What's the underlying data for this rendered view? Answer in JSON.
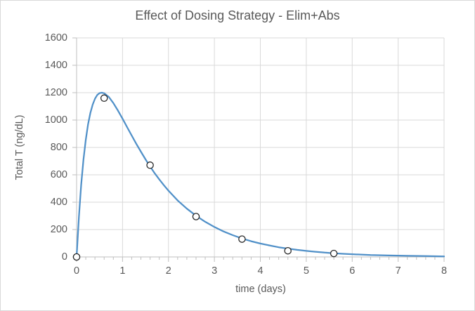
{
  "chart_data": {
    "type": "line",
    "title": "Effect of Dosing Strategy - Elim+Abs",
    "xlabel": "time (days)",
    "ylabel": "Total T (ng/dL)",
    "xlim": [
      0,
      8
    ],
    "ylim": [
      0,
      1600
    ],
    "x_ticks": [
      0,
      1,
      2,
      3,
      4,
      5,
      6,
      7,
      8
    ],
    "x_minor_tick_interval": 0.2,
    "y_ticks": [
      0,
      200,
      400,
      600,
      800,
      1000,
      1200,
      1400,
      1600
    ],
    "grid": true,
    "legend": false,
    "series": [
      {
        "name": "model-curve",
        "type": "line",
        "color": "#5090C8",
        "points": [
          [
            0,
            0
          ],
          [
            0.05,
            292
          ],
          [
            0.1,
            526
          ],
          [
            0.15,
            712
          ],
          [
            0.2,
            857
          ],
          [
            0.25,
            968
          ],
          [
            0.3,
            1052
          ],
          [
            0.35,
            1113
          ],
          [
            0.4,
            1156
          ],
          [
            0.45,
            1183
          ],
          [
            0.5,
            1197
          ],
          [
            0.55,
            1200
          ],
          [
            0.6,
            1196
          ],
          [
            0.7,
            1169
          ],
          [
            0.8,
            1124
          ],
          [
            0.9,
            1070
          ],
          [
            1.0,
            1010
          ],
          [
            1.1,
            948
          ],
          [
            1.2,
            887
          ],
          [
            1.3,
            826
          ],
          [
            1.4,
            769
          ],
          [
            1.5,
            713
          ],
          [
            1.6,
            661
          ],
          [
            1.7,
            612
          ],
          [
            1.8,
            566
          ],
          [
            1.9,
            524
          ],
          [
            2.0,
            484
          ],
          [
            2.2,
            413
          ],
          [
            2.4,
            353
          ],
          [
            2.6,
            301
          ],
          [
            2.8,
            257
          ],
          [
            3.0,
            219
          ],
          [
            3.2,
            186
          ],
          [
            3.4,
            159
          ],
          [
            3.6,
            135
          ],
          [
            3.8,
            115
          ],
          [
            4.0,
            98
          ],
          [
            4.2,
            84
          ],
          [
            4.4,
            71
          ],
          [
            4.6,
            61
          ],
          [
            4.8,
            52
          ],
          [
            5.0,
            44
          ],
          [
            5.2,
            38
          ],
          [
            5.4,
            32
          ],
          [
            5.6,
            27
          ],
          [
            5.8,
            23
          ],
          [
            6.0,
            20
          ],
          [
            6.4,
            14
          ],
          [
            6.8,
            11
          ],
          [
            7.2,
            8
          ],
          [
            7.6,
            6
          ],
          [
            8.0,
            4
          ]
        ]
      },
      {
        "name": "observed-data-points",
        "type": "scatter",
        "marker": "open-circle",
        "color": "#262626",
        "points": [
          [
            0,
            0
          ],
          [
            0.6,
            1160
          ],
          [
            1.6,
            670
          ],
          [
            2.6,
            295
          ],
          [
            3.6,
            130
          ],
          [
            4.6,
            45
          ],
          [
            5.6,
            25
          ]
        ]
      }
    ]
  },
  "colors": {
    "background": "#FFFFFF",
    "chart_border": "#D9D9D9",
    "gridline": "#D9D9D9",
    "axis_line": "#BFBFBF",
    "tick_mark": "#BFBFBF",
    "text": "#595959",
    "curve": "#5090C8",
    "marker_stroke": "#262626",
    "marker_fill": "#FFFFFF"
  }
}
